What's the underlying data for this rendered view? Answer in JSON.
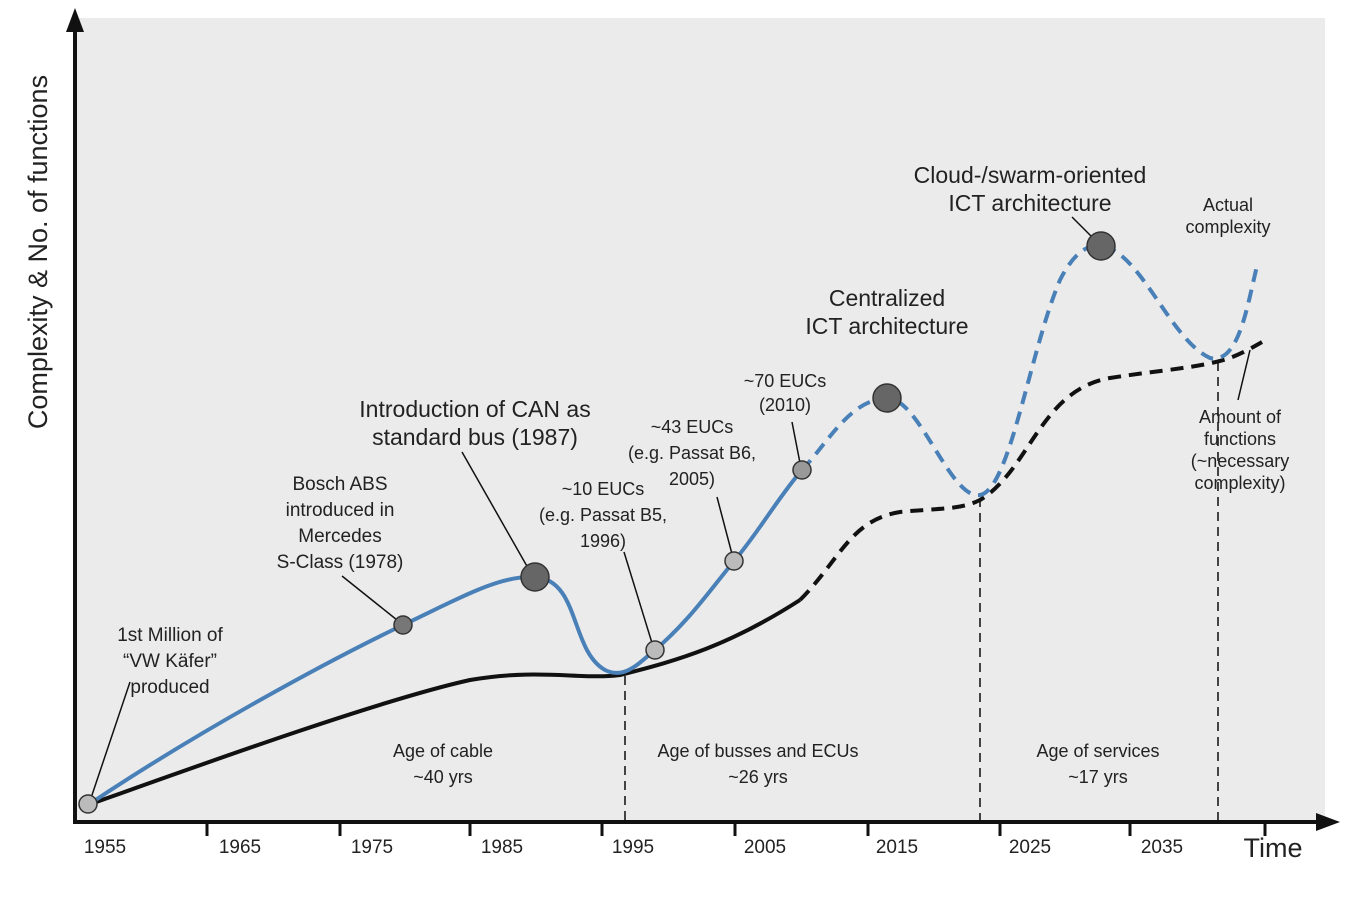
{
  "axis": {
    "y_label": "Complexity & No. of functions",
    "x_label": "Time",
    "years": [
      "1955",
      "1965",
      "1975",
      "1985",
      "1995",
      "2005",
      "2015",
      "2025",
      "2035"
    ]
  },
  "eras": [
    {
      "name": "Age of cable",
      "duration": "~40 yrs"
    },
    {
      "name": "Age of busses and ECUs",
      "duration": "~26 yrs"
    },
    {
      "name": "Age of services",
      "duration": "~17 yrs"
    }
  ],
  "annotations": [
    {
      "lines": [
        "1st Million of",
        "“VW Käfer”",
        "produced"
      ]
    },
    {
      "lines": [
        "Bosch ABS",
        "introduced in",
        "Mercedes",
        "S-Class (1978)"
      ]
    },
    {
      "lines": [
        "Introduction of CAN as",
        "standard bus (1987)"
      ]
    },
    {
      "lines": [
        "~10 EUCs",
        "(e.g. Passat B5,",
        "1996)"
      ]
    },
    {
      "lines": [
        "~43 EUCs",
        "(e.g. Passat B6,",
        "2005)"
      ]
    },
    {
      "lines": [
        "~70 EUCs",
        "(2010)"
      ]
    },
    {
      "lines": [
        "Centralized",
        "ICT architecture"
      ]
    },
    {
      "lines": [
        "Cloud-/swarm-oriented",
        "ICT architecture"
      ]
    }
  ],
  "curve_labels": {
    "actual": [
      "Actual",
      "complexity"
    ],
    "functions": [
      "Amount of",
      "functions",
      "(~necessary",
      "complexity)"
    ]
  }
}
